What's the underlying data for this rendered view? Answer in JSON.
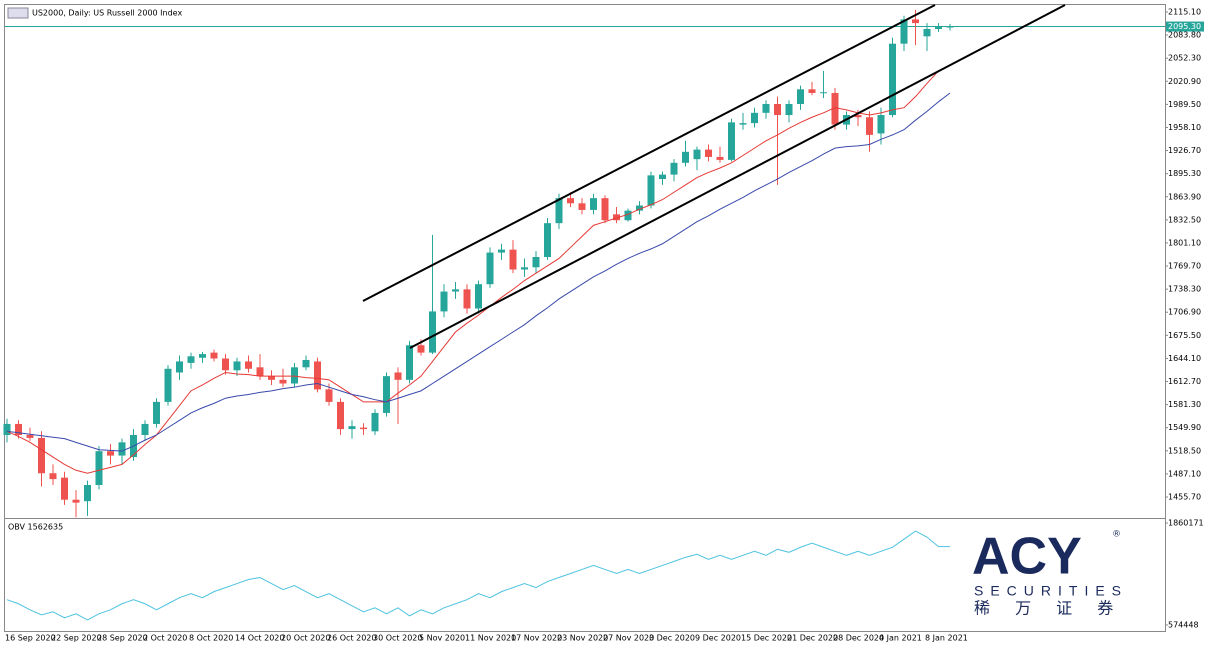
{
  "chart_data": [
    {
      "type": "candlestick",
      "title": "US2000, Daily: US Russell 2000 Index",
      "categories": [
        "16 Sep 2020",
        null,
        null,
        null,
        "22 Sep 2020",
        null,
        null,
        null,
        "28 Sep 2020",
        null,
        null,
        null,
        "2 Oct 2020",
        null,
        null,
        null,
        "8 Oct 2020",
        null,
        null,
        null,
        "14 Oct 2020",
        null,
        null,
        null,
        "20 Oct 2020",
        null,
        null,
        null,
        "26 Oct 2020",
        null,
        null,
        null,
        "30 Oct 2020",
        null,
        null,
        null,
        "5 Nov 2020",
        null,
        null,
        null,
        "11 Nov 2020",
        null,
        null,
        null,
        "17 Nov 2020",
        null,
        null,
        null,
        "23 Nov 2020",
        null,
        null,
        null,
        "27 Nov 2020",
        null,
        null,
        null,
        "3 Dec 2020",
        null,
        null,
        null,
        "9 Dec 2020",
        null,
        null,
        null,
        "15 Dec 2020",
        null,
        null,
        null,
        "21 Dec 2020",
        null,
        null,
        null,
        "28 Dec 2020",
        null,
        null,
        null,
        "4 Jan 2021",
        null,
        null,
        null,
        "8 Jan 2021",
        null,
        null
      ],
      "open": [
        1540,
        1555,
        1540,
        1536,
        1488,
        1482,
        1452,
        1450,
        1472,
        1518,
        1512,
        1510,
        1540,
        1555,
        1585,
        1625,
        1638,
        1645,
        1652,
        1644,
        1628,
        1640,
        1632,
        1620,
        1615,
        1610,
        1632,
        1640,
        1602,
        1585,
        1548,
        1550,
        1545,
        1570,
        1625,
        1615,
        1662,
        1652,
        1708,
        1735,
        1738,
        1712,
        1745,
        1788,
        1792,
        1765,
        1768,
        1782,
        1828,
        1862,
        1855,
        1846,
        1862,
        1840,
        1832,
        1845,
        1852,
        1888,
        1894,
        1910,
        1915,
        1928,
        1918,
        1914,
        1962,
        1964,
        1978,
        1990,
        1975,
        1990,
        2010,
        2005,
        2005,
        1962,
        1975,
        1972,
        1950,
        1975,
        2072,
        2105,
        2082,
        2092,
        2094
      ],
      "high": [
        1562,
        1560,
        1550,
        1545,
        1500,
        1490,
        1465,
        1478,
        1525,
        1528,
        1535,
        1548,
        1560,
        1590,
        1635,
        1648,
        1652,
        1653,
        1656,
        1650,
        1645,
        1648,
        1650,
        1628,
        1630,
        1638,
        1648,
        1645,
        1610,
        1590,
        1560,
        1556,
        1575,
        1625,
        1632,
        1668,
        1670,
        1812,
        1745,
        1748,
        1745,
        1750,
        1795,
        1800,
        1805,
        1780,
        1790,
        1835,
        1868,
        1870,
        1862,
        1868,
        1866,
        1850,
        1848,
        1858,
        1898,
        1898,
        1915,
        1940,
        1932,
        1935,
        1932,
        1970,
        1978,
        1985,
        1995,
        2000,
        1995,
        2015,
        2020,
        2035,
        2012,
        1980,
        1982,
        1980,
        1985,
        2080,
        2110,
        2118,
        2100,
        2100,
        2099
      ],
      "low": [
        1530,
        1535,
        1532,
        1470,
        1472,
        1445,
        1428,
        1430,
        1466,
        1500,
        1500,
        1505,
        1532,
        1550,
        1580,
        1615,
        1630,
        1638,
        1640,
        1622,
        1620,
        1625,
        1615,
        1608,
        1605,
        1605,
        1628,
        1598,
        1580,
        1540,
        1535,
        1540,
        1540,
        1565,
        1555,
        1610,
        1648,
        1650,
        1700,
        1725,
        1705,
        1705,
        1740,
        1778,
        1760,
        1755,
        1760,
        1778,
        1820,
        1850,
        1840,
        1840,
        1828,
        1828,
        1830,
        1840,
        1848,
        1880,
        1885,
        1905,
        1900,
        1912,
        1910,
        1912,
        1955,
        1958,
        1970,
        1880,
        1965,
        1982,
        2002,
        1998,
        1955,
        1955,
        1960,
        1925,
        1935,
        1972,
        2062,
        2070,
        2062,
        2088,
        2090
      ],
      "close": [
        1555,
        1540,
        1536,
        1488,
        1480,
        1452,
        1448,
        1472,
        1518,
        1512,
        1530,
        1540,
        1555,
        1585,
        1630,
        1640,
        1647,
        1650,
        1644,
        1628,
        1640,
        1630,
        1620,
        1615,
        1610,
        1632,
        1642,
        1602,
        1585,
        1548,
        1552,
        1548,
        1570,
        1620,
        1615,
        1662,
        1652,
        1708,
        1735,
        1738,
        1712,
        1745,
        1788,
        1792,
        1765,
        1768,
        1782,
        1828,
        1862,
        1855,
        1846,
        1862,
        1832,
        1832,
        1845,
        1852,
        1893,
        1894,
        1910,
        1925,
        1928,
        1918,
        1914,
        1965,
        1964,
        1978,
        1990,
        1975,
        1990,
        2010,
        2005,
        2006,
        1962,
        1975,
        1972,
        1948,
        1975,
        2072,
        2105,
        2100,
        2092,
        2096,
        2095.3
      ],
      "up_color": "#26a69a",
      "down_color": "#ef5350",
      "series": [
        {
          "color": "#e53935",
          "values": [
            1545,
            1538,
            1530,
            1520,
            1510,
            1500,
            1492,
            1488,
            1492,
            1496,
            1500,
            1513,
            1527,
            1540,
            1560,
            1580,
            1600,
            1608,
            1617,
            1625,
            1623,
            1622,
            1620,
            1620,
            1620,
            1620,
            1618,
            1617,
            1615,
            1605,
            1595,
            1585,
            1585,
            1585,
            1597,
            1608,
            1620,
            1640,
            1660,
            1680,
            1692,
            1703,
            1715,
            1727,
            1738,
            1750,
            1760,
            1770,
            1780,
            1795,
            1810,
            1825,
            1830,
            1835,
            1840,
            1847,
            1853,
            1860,
            1870,
            1880,
            1890,
            1897,
            1903,
            1910,
            1920,
            1930,
            1940,
            1948,
            1957,
            1965,
            1972,
            1978,
            1985,
            1982,
            1978,
            1975,
            1978,
            1982,
            1985,
            2000,
            2018,
            2035,
            null
          ]
        },
        {
          "color": "#3949ab",
          "values": [
            1545,
            1543,
            1541,
            1539,
            1537,
            1535,
            1530,
            1525,
            1520,
            1519,
            1518,
            1525,
            1533,
            1540,
            1550,
            1560,
            1570,
            1577,
            1583,
            1590,
            1593,
            1595,
            1598,
            1600,
            1603,
            1605,
            1608,
            1610,
            1605,
            1600,
            1595,
            1592,
            1588,
            1585,
            1590,
            1595,
            1600,
            1610,
            1620,
            1630,
            1640,
            1650,
            1660,
            1670,
            1680,
            1690,
            1702,
            1713,
            1725,
            1735,
            1745,
            1755,
            1763,
            1772,
            1780,
            1787,
            1793,
            1800,
            1810,
            1820,
            1830,
            1838,
            1847,
            1855,
            1863,
            1872,
            1880,
            1888,
            1897,
            1905,
            1913,
            1922,
            1930,
            1932,
            1933,
            1935,
            1942,
            1948,
            1955,
            1968,
            1980,
            1993,
            2005
          ]
        }
      ],
      "ylim": [
        1428.5,
        2124.6
      ],
      "yticks": [
        {
          "value": 2115.1,
          "label": "2115.10"
        },
        {
          "value": 2083.8,
          "label": "2083.80"
        },
        {
          "value": 2052.3,
          "label": "2052.30"
        },
        {
          "value": 2020.9,
          "label": "2020.90"
        },
        {
          "value": 1989.5,
          "label": "1989.50"
        },
        {
          "value": 1958.1,
          "label": "1958.10"
        },
        {
          "value": 1926.7,
          "label": "1926.70"
        },
        {
          "value": 1895.3,
          "label": "1895.30"
        },
        {
          "value": 1863.9,
          "label": "1863.90"
        },
        {
          "value": 1832.5,
          "label": "1832.50"
        },
        {
          "value": 1801.1,
          "label": "1801.10"
        },
        {
          "value": 1769.7,
          "label": "1769.70"
        },
        {
          "value": 1738.3,
          "label": "1738.30"
        },
        {
          "value": 1706.9,
          "label": "1706.90"
        },
        {
          "value": 1675.5,
          "label": "1675.50"
        },
        {
          "value": 1644.1,
          "label": "1644.10"
        },
        {
          "value": 1612.7,
          "label": "1612.70"
        },
        {
          "value": 1581.3,
          "label": "1581.30"
        },
        {
          "value": 1549.9,
          "label": "1549.90"
        },
        {
          "value": 1518.5,
          "label": "1518.50"
        },
        {
          "value": 1487.1,
          "label": "1487.10"
        },
        {
          "value": 1455.7,
          "label": "1455.70"
        }
      ],
      "last_price": {
        "value": 2095.3,
        "label": "2095.30"
      },
      "last_price_color": "#26a69a"
    },
    {
      "type": "line",
      "title": "OBV 1562635",
      "color": "#4ec3e0",
      "values": [
        892700,
        841800,
        765400,
        701700,
        739900,
        663600,
        714500,
        638100,
        714500,
        765400,
        841800,
        892700,
        841800,
        765400,
        841800,
        918200,
        969100,
        918200,
        994500,
        1045500,
        1096400,
        1147300,
        1172800,
        1096400,
        1020000,
        1070900,
        994500,
        918200,
        969100,
        892700,
        816300,
        739900,
        790900,
        714500,
        790900,
        689000,
        765400,
        714500,
        790900,
        841800,
        892700,
        969100,
        918200,
        994500,
        1045500,
        1096400,
        1045500,
        1121800,
        1172800,
        1223700,
        1274600,
        1325500,
        1274600,
        1223700,
        1274600,
        1223700,
        1274600,
        1325500,
        1376400,
        1427400,
        1465500,
        1401900,
        1452800,
        1401900,
        1452800,
        1503700,
        1452800,
        1529200,
        1491000,
        1554700,
        1605600,
        1554700,
        1503700,
        1452800,
        1503700,
        1452800,
        1503700,
        1554700,
        1656500,
        1758300,
        1682000,
        1562635,
        1562635
      ],
      "ylim": [
        485300,
        1911100
      ],
      "yticks": [
        574448,
        1860171
      ]
    }
  ],
  "logo": {
    "brand": "ACY",
    "reg": "®",
    "sub": "SECURITIES",
    "cn": "稀 万 证 券"
  }
}
